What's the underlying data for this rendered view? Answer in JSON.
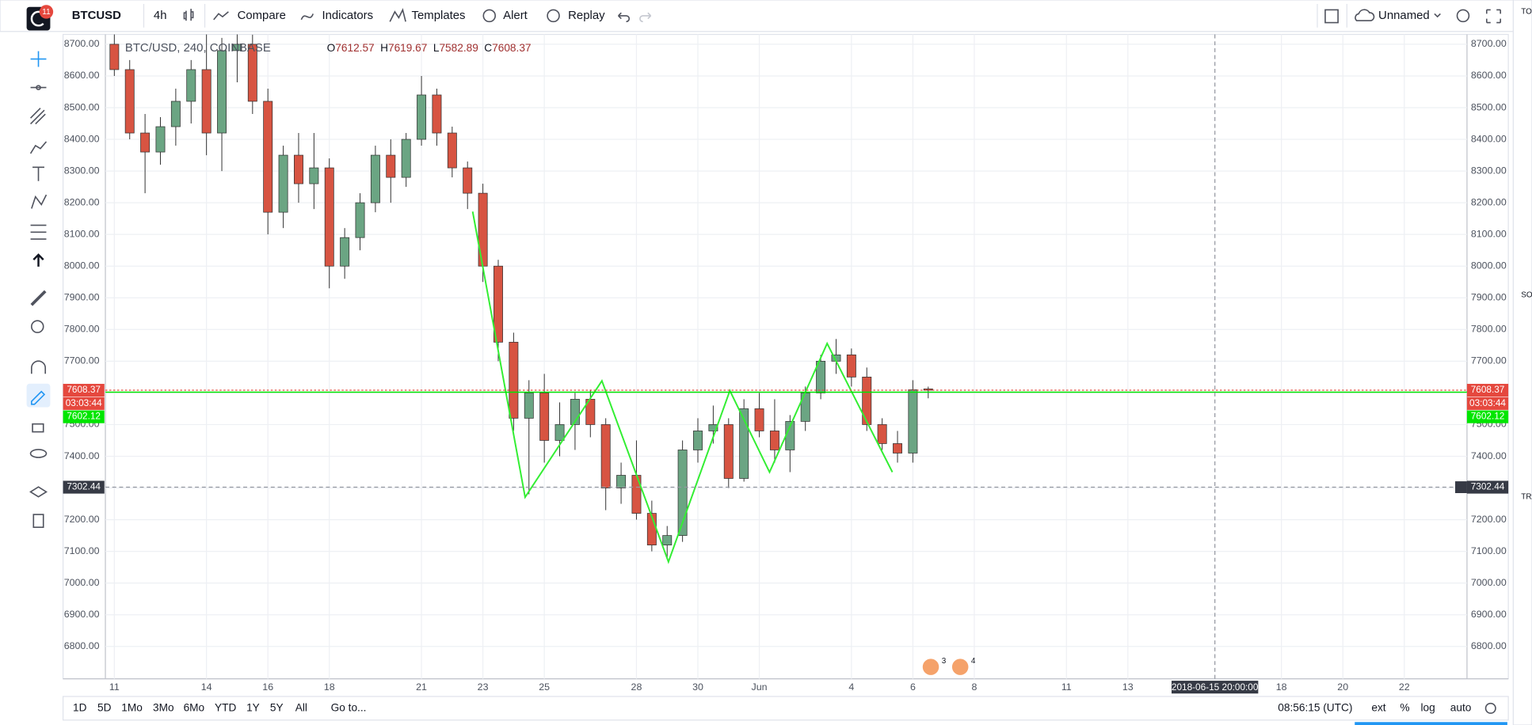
{
  "toolbar": {
    "badge": "11",
    "symbol": "BTCUSD",
    "interval": "4h",
    "buttons": [
      "Compare",
      "Indicators",
      "Templates",
      "Alert",
      "Replay"
    ],
    "layout_name": "Unnamed"
  },
  "chart_data": {
    "type": "candlestick",
    "title": "BTC/USD, 240, COINBASE",
    "ohlc_labels": [
      "O",
      "H",
      "L",
      "C"
    ],
    "x": [
      "2018-05-11T00:00",
      "2018-05-11T12:00",
      "2018-05-12T00:00",
      "2018-05-12T12:00",
      "2018-05-13T00:00",
      "2018-05-13T12:00",
      "2018-05-14T00:00",
      "2018-05-14T12:00",
      "2018-05-15T00:00",
      "2018-05-15T12:00",
      "2018-05-16T00:00",
      "2018-05-16T12:00",
      "2018-05-17T00:00",
      "2018-05-17T12:00",
      "2018-05-18T00:00",
      "2018-05-18T12:00",
      "2018-05-19T00:00",
      "2018-05-19T12:00",
      "2018-05-20T00:00",
      "2018-05-20T12:00",
      "2018-05-21T00:00",
      "2018-05-21T12:00",
      "2018-05-22T00:00",
      "2018-05-22T12:00",
      "2018-05-23T00:00",
      "2018-05-23T12:00",
      "2018-05-24T00:00",
      "2018-05-24T12:00",
      "2018-05-25T00:00",
      "2018-05-25T12:00",
      "2018-05-26T00:00",
      "2018-05-26T12:00",
      "2018-05-27T00:00",
      "2018-05-27T12:00",
      "2018-05-28T00:00",
      "2018-05-28T12:00",
      "2018-05-29T00:00",
      "2018-05-29T12:00",
      "2018-05-30T00:00",
      "2018-05-30T12:00",
      "2018-05-31T00:00",
      "2018-05-31T12:00",
      "2018-06-01T00:00",
      "2018-06-01T12:00",
      "2018-06-02T00:00",
      "2018-06-02T12:00",
      "2018-06-03T00:00",
      "2018-06-03T12:00",
      "2018-06-04T00:00",
      "2018-06-04T12:00",
      "2018-06-05T00:00",
      "2018-06-05T12:00",
      "2018-06-06T00:00",
      "2018-06-06T12:00"
    ],
    "open": [
      8700,
      8620,
      8420,
      8360,
      8440,
      8520,
      8620,
      8420,
      8680,
      8700,
      8520,
      8170,
      8350,
      8260,
      8310,
      8000,
      8090,
      8200,
      8350,
      8280,
      8400,
      8540,
      8420,
      8310,
      8230,
      8000,
      7760,
      7520,
      7600,
      7450,
      7500,
      7580,
      7500,
      7300,
      7340,
      7220,
      7120,
      7150,
      7420,
      7480,
      7500,
      7330,
      7550,
      7480,
      7420,
      7510,
      7600,
      7700,
      7720,
      7650,
      7500,
      7440,
      7410,
      7612.57
    ],
    "high": [
      8760,
      8650,
      8480,
      8470,
      8560,
      8650,
      8740,
      8720,
      8750,
      8730,
      8560,
      8380,
      8420,
      8420,
      8340,
      8120,
      8230,
      8380,
      8400,
      8420,
      8600,
      8560,
      8440,
      8330,
      8260,
      8020,
      7790,
      7640,
      7660,
      7570,
      7600,
      7610,
      7520,
      7380,
      7450,
      7260,
      7180,
      7450,
      7520,
      7560,
      7520,
      7580,
      7600,
      7580,
      7530,
      7620,
      7720,
      7770,
      7740,
      7680,
      7520,
      7480,
      7640,
      7619.67
    ],
    "low": [
      8600,
      8400,
      8230,
      8320,
      8380,
      8450,
      8350,
      8300,
      8580,
      8480,
      8100,
      8120,
      8200,
      8180,
      7930,
      7960,
      8050,
      8170,
      8200,
      8250,
      8380,
      8380,
      8280,
      8180,
      7950,
      7700,
      7480,
      7280,
      7380,
      7400,
      7420,
      7460,
      7230,
      7250,
      7200,
      7100,
      7080,
      7130,
      7380,
      7440,
      7300,
      7320,
      7460,
      7380,
      7350,
      7480,
      7580,
      7660,
      7620,
      7480,
      7420,
      7380,
      7380,
      7582.89
    ],
    "close": [
      8620,
      8420,
      8360,
      8440,
      8520,
      8620,
      8420,
      8680,
      8700,
      8520,
      8170,
      8350,
      8260,
      8310,
      8000,
      8090,
      8200,
      8350,
      8280,
      8400,
      8540,
      8420,
      8310,
      8230,
      8000,
      7760,
      7520,
      7600,
      7450,
      7500,
      7580,
      7500,
      7300,
      7340,
      7220,
      7120,
      7150,
      7420,
      7480,
      7500,
      7330,
      7550,
      7480,
      7420,
      7510,
      7600,
      7700,
      7720,
      7650,
      7500,
      7440,
      7410,
      7610,
      7608.37
    ],
    "up_color": "#6ba583",
    "down_color": "#d75442",
    "xlim": [
      "2018-05-10T17:00",
      "2018-06-24T01:00"
    ],
    "ylim": [
      6698,
      8731
    ],
    "yticks": [
      {
        "value": 6800,
        "label": "6800.00"
      },
      {
        "value": 6900,
        "label": "6900.00"
      },
      {
        "value": 7000,
        "label": "7000.00"
      },
      {
        "value": 7100,
        "label": "7100.00"
      },
      {
        "value": 7200,
        "label": "7200.00"
      },
      {
        "value": 7300,
        "label": "7300.00"
      },
      {
        "value": 7400,
        "label": "7400.00"
      },
      {
        "value": 7500,
        "label": "7500.00"
      },
      {
        "value": 7600,
        "label": "7600.00"
      },
      {
        "value": 7700,
        "label": "7700.00"
      },
      {
        "value": 7800,
        "label": "7800.00"
      },
      {
        "value": 7900,
        "label": "7900.00"
      },
      {
        "value": 8000,
        "label": "8000.00"
      },
      {
        "value": 8100,
        "label": "8100.00"
      },
      {
        "value": 8200,
        "label": "8200.00"
      },
      {
        "value": 8300,
        "label": "8300.00"
      },
      {
        "value": 8400,
        "label": "8400.00"
      },
      {
        "value": 8500,
        "label": "8500.00"
      },
      {
        "value": 8600,
        "label": "8600.00"
      },
      {
        "value": 8700,
        "label": "8700.00"
      }
    ],
    "xticks": [
      {
        "value": "2018-05-11",
        "label": "11"
      },
      {
        "value": "2018-05-14",
        "label": "14"
      },
      {
        "value": "2018-05-16",
        "label": "16"
      },
      {
        "value": "2018-05-18",
        "label": "18"
      },
      {
        "value": "2018-05-21",
        "label": "21"
      },
      {
        "value": "2018-05-23",
        "label": "23"
      },
      {
        "value": "2018-05-25",
        "label": "25"
      },
      {
        "value": "2018-05-28",
        "label": "28"
      },
      {
        "value": "2018-05-30",
        "label": "30"
      },
      {
        "value": "2018-06-01",
        "label": "Jun"
      },
      {
        "value": "2018-06-04",
        "label": "4"
      },
      {
        "value": "2018-06-06",
        "label": "6"
      },
      {
        "value": "2018-06-08",
        "label": "8"
      },
      {
        "value": "2018-06-11",
        "label": "11"
      },
      {
        "value": "2018-06-13",
        "label": "13"
      },
      {
        "value": "2018-06-18",
        "label": "18"
      },
      {
        "value": "2018-06-20",
        "label": "20"
      },
      {
        "value": "2018-06-22",
        "label": "22"
      }
    ],
    "grid": true,
    "overlay": {
      "x": [
        "2018-05-22T16:00",
        "2018-05-24T09:00",
        "2018-05-26T21:00",
        "2018-05-29T01:00",
        "2018-05-31T01:00",
        "2018-06-01T08:00",
        "2018-06-03T05:00",
        "2018-06-05T08:00"
      ],
      "values": [
        8172,
        7271,
        7638,
        7067,
        7607,
        7350,
        7756,
        7350
      ],
      "color": "#33ee33"
    },
    "last_color": "#e5483e",
    "countdown": "03:03:44",
    "bid_price": 7602.12,
    "bid_color": "#00e600",
    "crosshair": {
      "x": {
        "value": "2018-06-15T20:00",
        "label": "2018-06-15 20:00:00"
      },
      "y": 7302.44
    },
    "events": {
      "x": [
        "2018-06-06T14:00",
        "2018-06-07T13:00"
      ],
      "counts": [
        3,
        4
      ]
    }
  },
  "range_bar": {
    "ranges": [
      "1D",
      "5D",
      "1Mo",
      "3Mo",
      "6Mo",
      "YTD",
      "1Y",
      "5Y",
      "All"
    ],
    "goto": "Go to...",
    "time": "08:56:15 (UTC)",
    "options": [
      "ext",
      "%",
      "log",
      "auto"
    ]
  },
  "right_panel": {
    "labels": [
      "TO",
      "SOC",
      "TRA"
    ]
  }
}
